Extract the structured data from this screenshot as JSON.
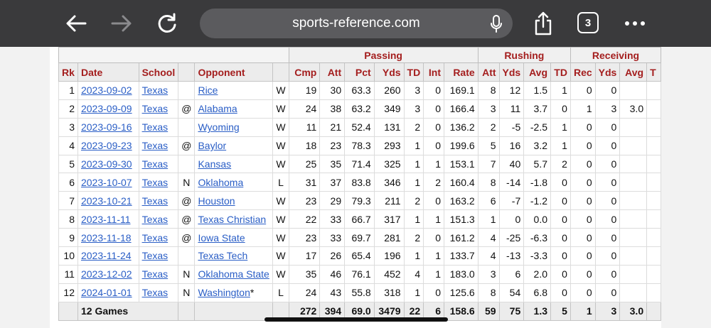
{
  "browser": {
    "url": "sports-reference.com",
    "tab_count": "3",
    "icons": [
      "back-arrow-icon",
      "forward-arrow-icon",
      "reload-icon",
      "microphone-icon",
      "share-icon",
      "tabs-icon",
      "more-icon"
    ]
  },
  "table": {
    "over_headers": {
      "passing": "Passing",
      "rushing": "Rushing",
      "receiving": "Receiving"
    },
    "columns": {
      "rk": "Rk",
      "date": "Date",
      "school": "School",
      "opponent": "Opponent",
      "cmp": "Cmp",
      "att": "Att",
      "pct": "Pct",
      "yds": "Yds",
      "td": "TD",
      "int": "Int",
      "rate": "Rate",
      "rush_att": "Att",
      "rush_yds": "Yds",
      "rush_avg": "Avg",
      "rush_td": "TD",
      "rec": "Rec",
      "rec_yds": "Yds",
      "rec_avg": "Avg",
      "rec_td": "T"
    },
    "rows": [
      {
        "rk": "1",
        "date": "2023-09-02",
        "school": "Texas",
        "loc": "",
        "opp": "Rice",
        "res": "W",
        "cmp": "19",
        "att": "30",
        "pct": "63.3",
        "yds": "260",
        "td": "3",
        "int": "0",
        "rate": "169.1",
        "ratt": "8",
        "ryds": "12",
        "ravg": "1.5",
        "rtd": "1",
        "rec": "0",
        "recyds": "0",
        "recavg": ""
      },
      {
        "rk": "2",
        "date": "2023-09-09",
        "school": "Texas",
        "loc": "@",
        "opp": "Alabama",
        "res": "W",
        "cmp": "24",
        "att": "38",
        "pct": "63.2",
        "yds": "349",
        "td": "3",
        "int": "0",
        "rate": "166.4",
        "ratt": "3",
        "ryds": "11",
        "ravg": "3.7",
        "rtd": "0",
        "rec": "1",
        "recyds": "3",
        "recavg": "3.0"
      },
      {
        "rk": "3",
        "date": "2023-09-16",
        "school": "Texas",
        "loc": "",
        "opp": "Wyoming",
        "res": "W",
        "cmp": "11",
        "att": "21",
        "pct": "52.4",
        "yds": "131",
        "td": "2",
        "int": "0",
        "rate": "136.2",
        "ratt": "2",
        "ryds": "-5",
        "ravg": "-2.5",
        "rtd": "1",
        "rec": "0",
        "recyds": "0",
        "recavg": ""
      },
      {
        "rk": "4",
        "date": "2023-09-23",
        "school": "Texas",
        "loc": "@",
        "opp": "Baylor",
        "res": "W",
        "cmp": "18",
        "att": "23",
        "pct": "78.3",
        "yds": "293",
        "td": "1",
        "int": "0",
        "rate": "199.6",
        "ratt": "5",
        "ryds": "16",
        "ravg": "3.2",
        "rtd": "1",
        "rec": "0",
        "recyds": "0",
        "recavg": ""
      },
      {
        "rk": "5",
        "date": "2023-09-30",
        "school": "Texas",
        "loc": "",
        "opp": "Kansas",
        "res": "W",
        "cmp": "25",
        "att": "35",
        "pct": "71.4",
        "yds": "325",
        "td": "1",
        "int": "1",
        "rate": "153.1",
        "ratt": "7",
        "ryds": "40",
        "ravg": "5.7",
        "rtd": "2",
        "rec": "0",
        "recyds": "0",
        "recavg": ""
      },
      {
        "rk": "6",
        "date": "2023-10-07",
        "school": "Texas",
        "loc": "N",
        "opp": "Oklahoma",
        "res": "L",
        "cmp": "31",
        "att": "37",
        "pct": "83.8",
        "yds": "346",
        "td": "1",
        "int": "2",
        "rate": "160.4",
        "ratt": "8",
        "ryds": "-14",
        "ravg": "-1.8",
        "rtd": "0",
        "rec": "0",
        "recyds": "0",
        "recavg": ""
      },
      {
        "rk": "7",
        "date": "2023-10-21",
        "school": "Texas",
        "loc": "@",
        "opp": "Houston",
        "res": "W",
        "cmp": "23",
        "att": "29",
        "pct": "79.3",
        "yds": "211",
        "td": "2",
        "int": "0",
        "rate": "163.2",
        "ratt": "6",
        "ryds": "-7",
        "ravg": "-1.2",
        "rtd": "0",
        "rec": "0",
        "recyds": "0",
        "recavg": ""
      },
      {
        "rk": "8",
        "date": "2023-11-11",
        "school": "Texas",
        "loc": "@",
        "opp": "Texas Christian",
        "res": "W",
        "cmp": "22",
        "att": "33",
        "pct": "66.7",
        "yds": "317",
        "td": "1",
        "int": "1",
        "rate": "151.3",
        "ratt": "1",
        "ryds": "0",
        "ravg": "0.0",
        "rtd": "0",
        "rec": "0",
        "recyds": "0",
        "recavg": ""
      },
      {
        "rk": "9",
        "date": "2023-11-18",
        "school": "Texas",
        "loc": "@",
        "opp": "Iowa State",
        "res": "W",
        "cmp": "23",
        "att": "33",
        "pct": "69.7",
        "yds": "281",
        "td": "2",
        "int": "0",
        "rate": "161.2",
        "ratt": "4",
        "ryds": "-25",
        "ravg": "-6.3",
        "rtd": "0",
        "rec": "0",
        "recyds": "0",
        "recavg": ""
      },
      {
        "rk": "10",
        "date": "2023-11-24",
        "school": "Texas",
        "loc": "",
        "opp": "Texas Tech",
        "res": "W",
        "cmp": "17",
        "att": "26",
        "pct": "65.4",
        "yds": "196",
        "td": "1",
        "int": "1",
        "rate": "133.7",
        "ratt": "4",
        "ryds": "-13",
        "ravg": "-3.3",
        "rtd": "0",
        "rec": "0",
        "recyds": "0",
        "recavg": ""
      },
      {
        "rk": "11",
        "date": "2023-12-02",
        "school": "Texas",
        "loc": "N",
        "opp": "Oklahoma State",
        "res": "W",
        "cmp": "35",
        "att": "46",
        "pct": "76.1",
        "yds": "452",
        "td": "4",
        "int": "1",
        "rate": "183.0",
        "ratt": "3",
        "ryds": "6",
        "ravg": "2.0",
        "rtd": "0",
        "rec": "0",
        "recyds": "0",
        "recavg": ""
      },
      {
        "rk": "12",
        "date": "2024-01-01",
        "school": "Texas",
        "loc": "N",
        "opp": "Washington",
        "oppnote": "*",
        "res": "L",
        "cmp": "24",
        "att": "43",
        "pct": "55.8",
        "yds": "318",
        "td": "1",
        "int": "0",
        "rate": "125.6",
        "ratt": "8",
        "ryds": "54",
        "ravg": "6.8",
        "rtd": "0",
        "rec": "0",
        "recyds": "0",
        "recavg": ""
      }
    ],
    "totals": {
      "label": "12 Games",
      "cmp": "272",
      "att": "394",
      "pct": "69.0",
      "yds": "3479",
      "td": "22",
      "int": "6",
      "rate": "158.6",
      "ratt": "59",
      "ryds": "75",
      "ravg": "1.3",
      "rtd": "5",
      "rec": "1",
      "recyds": "3",
      "recavg": "3.0"
    }
  },
  "colors": {
    "header_text": "#a41e1e",
    "link": "#2a5ec6",
    "toolbar": "#3a3a3c"
  }
}
